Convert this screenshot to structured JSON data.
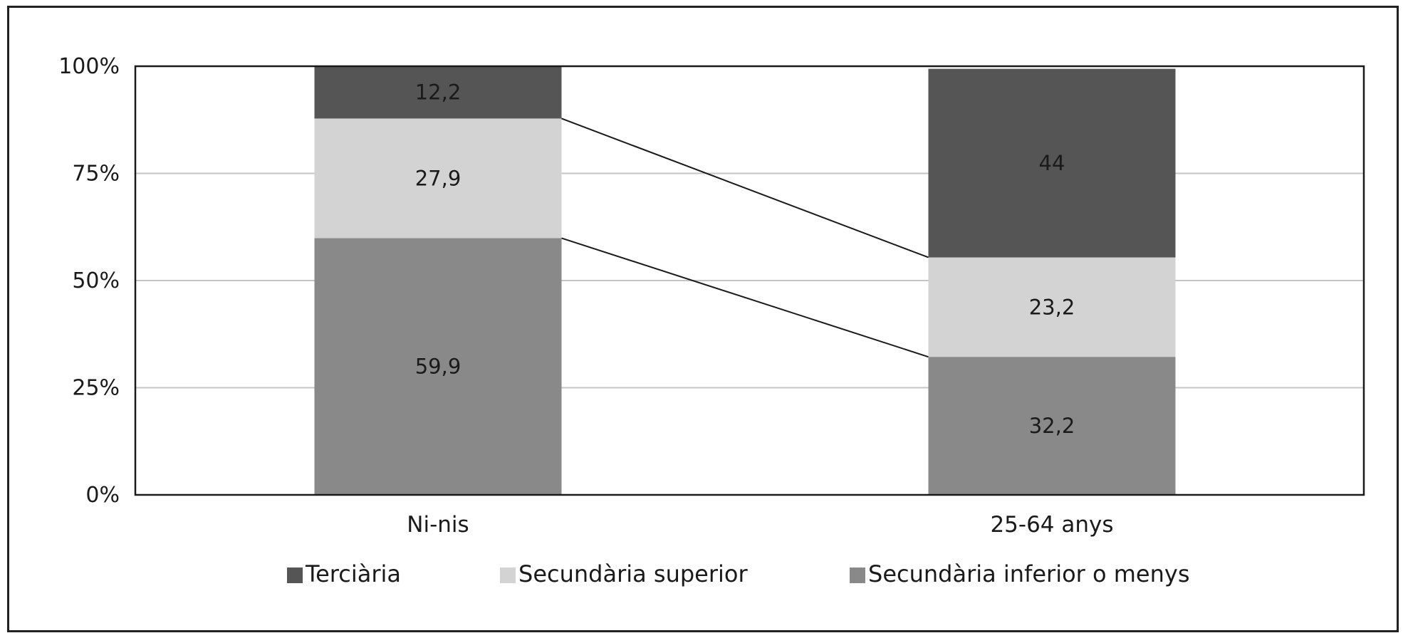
{
  "chart_data": {
    "type": "bar",
    "stacked": true,
    "categories": [
      "Ni-nis",
      "25-64 anys"
    ],
    "series": [
      {
        "name": "Secundària inferior o menys",
        "values": [
          59.9,
          32.2
        ],
        "labels": [
          "59,9",
          "32,2"
        ],
        "color": "#898989"
      },
      {
        "name": "Secundària superior",
        "values": [
          27.9,
          23.2
        ],
        "labels": [
          "27,9",
          "23,2"
        ],
        "color": "#d3d3d3"
      },
      {
        "name": "Terciària",
        "values": [
          12.2,
          44
        ],
        "labels": [
          "12,2",
          "44"
        ],
        "color": "#555555"
      }
    ],
    "legend_order": [
      "Terciària",
      "Secundària superior",
      "Secundària inferior o menys"
    ],
    "ylim": [
      0,
      100
    ],
    "yticks": [
      "0%",
      "25%",
      "50%",
      "75%",
      "100%"
    ],
    "ytick_values": [
      0,
      25,
      50,
      75,
      100
    ],
    "grid": true,
    "series_lines": true,
    "legend_position": "bottom",
    "title": "",
    "xlabel": "",
    "ylabel": ""
  }
}
